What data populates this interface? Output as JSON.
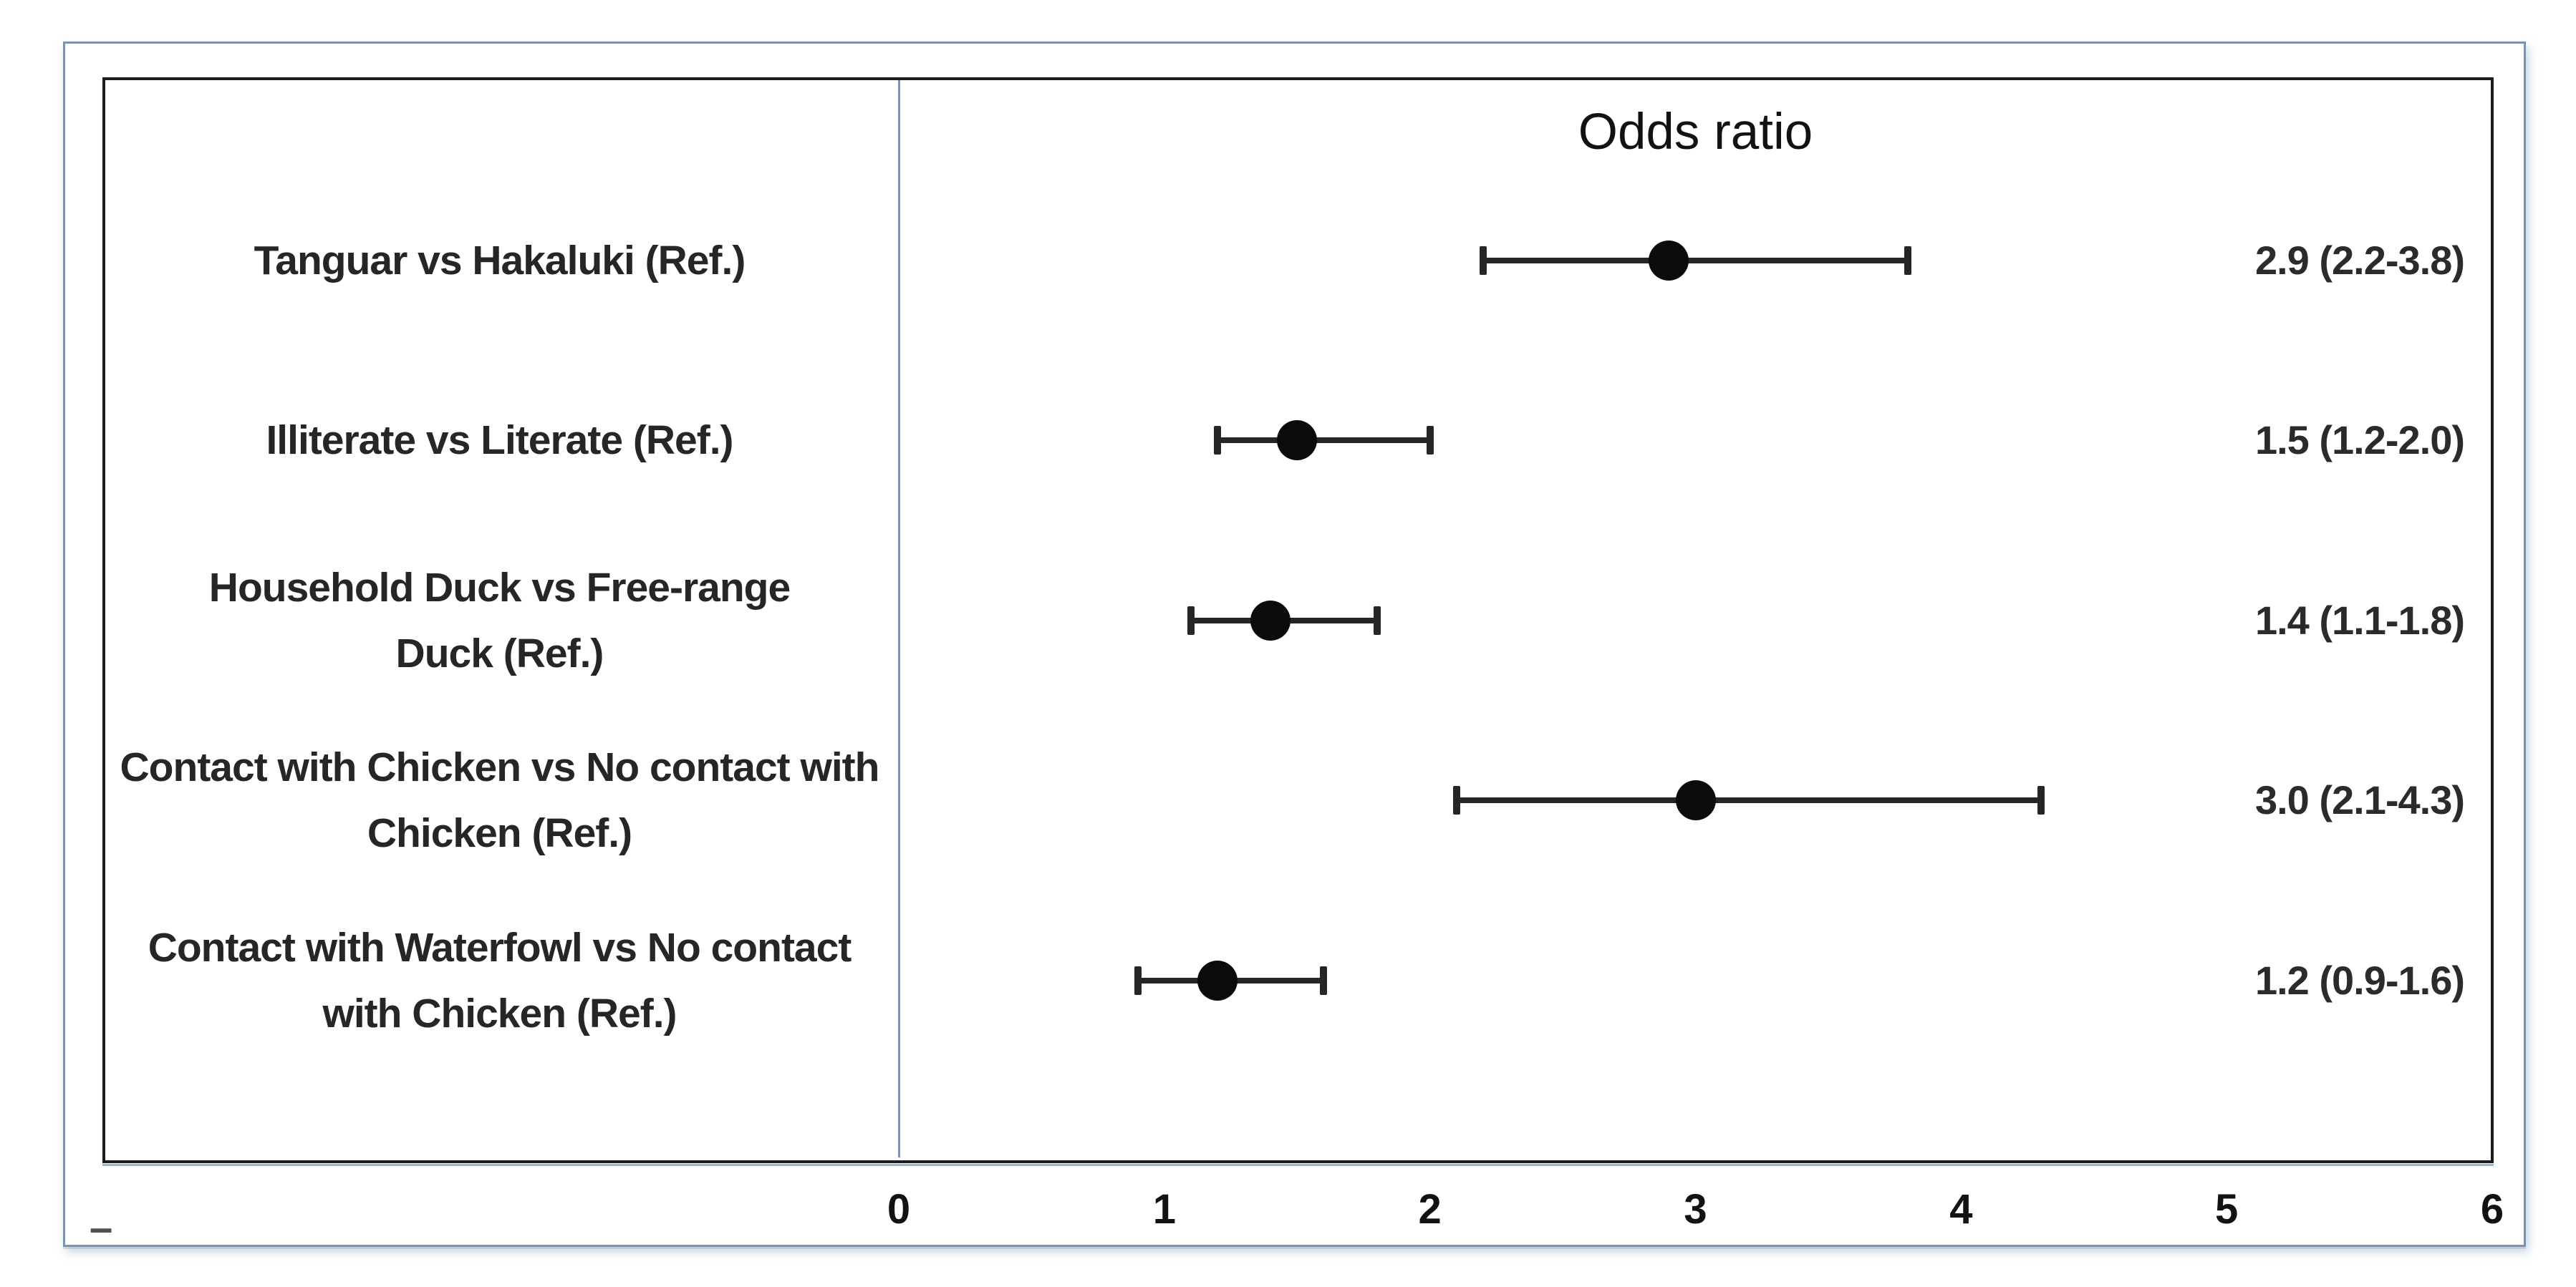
{
  "chart_data": {
    "type": "forest",
    "title": "Odds ratio",
    "x_axis": {
      "min": 0,
      "max": 6,
      "ticks": [
        0,
        1,
        2,
        3,
        4,
        5,
        6
      ]
    },
    "legend": "none",
    "grid": "off",
    "rows": [
      {
        "label": "Tanguar vs Hakaluki (Ref.)",
        "value_label": "2.9 (2.2-3.8)",
        "or": 2.9,
        "ci_low": 2.2,
        "ci_high": 3.8
      },
      {
        "label": "Illiterate vs Literate (Ref.)",
        "value_label": "1.5 (1.2-2.0)",
        "or": 1.5,
        "ci_low": 1.2,
        "ci_high": 2.0
      },
      {
        "label": "Household Duck vs Free-range\nDuck (Ref.)",
        "value_label": "1.4 (1.1-1.8)",
        "or": 1.4,
        "ci_low": 1.1,
        "ci_high": 1.8
      },
      {
        "label": "Contact with Chicken vs No contact with\nChicken (Ref.)",
        "value_label": "3.0 (2.1-4.3)",
        "or": 3.0,
        "ci_low": 2.1,
        "ci_high": 4.3
      },
      {
        "label": "Contact with Waterfowl vs No contact\nwith Chicken (Ref.)",
        "value_label": "1.2 (0.9-1.6)",
        "or": 1.2,
        "ci_low": 0.9,
        "ci_high": 1.6
      }
    ]
  },
  "annotations": {
    "bottom_left_mark": "–"
  },
  "colors": {
    "frame_border": "#7d92ac",
    "plot_border": "#1c1c1c",
    "axis_line": "#7d92ac",
    "marker": "#0b0b0b",
    "text": "#262626"
  }
}
